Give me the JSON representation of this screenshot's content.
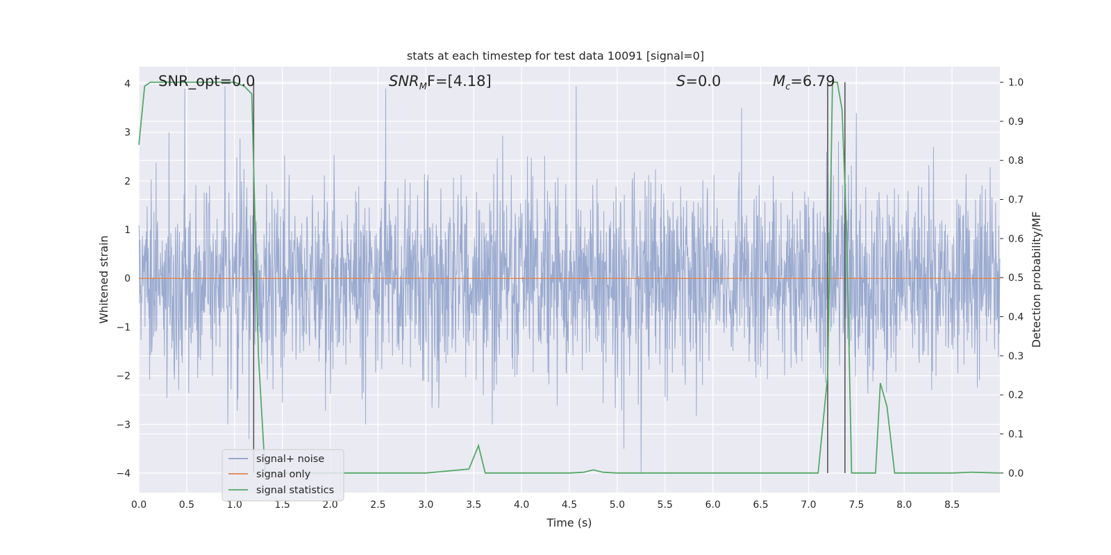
{
  "chart_data": {
    "type": "line",
    "title": "stats at each timestep for test data 10091 [signal=0]",
    "xlabel": "Time (s)",
    "ylabel_left": "Whitened strain",
    "ylabel_right": "Detection probability/MF",
    "xlim": [
      0.0,
      9.0
    ],
    "ylim_left": [
      -4.4,
      4.35
    ],
    "ylim_right": [
      -0.05,
      1.04
    ],
    "x_ticks": [
      "0.0",
      "0.5",
      "1.0",
      "1.5",
      "2.0",
      "2.5",
      "3.0",
      "3.5",
      "4.0",
      "4.5",
      "5.0",
      "5.5",
      "6.0",
      "6.5",
      "7.0",
      "7.5",
      "8.0",
      "8.5"
    ],
    "y_ticks_left": [
      "4",
      "3",
      "2",
      "1",
      "0",
      "−1",
      "−2",
      "−3",
      "−4"
    ],
    "y_ticks_right": [
      "1.0",
      "0.9",
      "0.8",
      "0.7",
      "0.6",
      "0.5",
      "0.4",
      "0.3",
      "0.2",
      "0.1",
      "0.0"
    ],
    "grid": true,
    "legend_position": "lower-left",
    "colors": {
      "background": "#eaeaf2",
      "grid": "#ffffff",
      "signal_noise": "#8c9fc9",
      "signal_only": "#dd8452",
      "signal_statistics": "#55a868",
      "vlines": "#555555"
    },
    "annotations": {
      "snr_opt": "SNR_opt=0.0",
      "snr_mf_main": "SNR",
      "snr_mf_sub": "M",
      "snr_mf_rest": "F=[4.18]",
      "s_main": "S",
      "s_rest": "=0.0",
      "mc_main": "M",
      "mc_sub": "c",
      "mc_rest": "=6.79"
    },
    "series": [
      {
        "name": "signal+ noise",
        "axis": "left",
        "style": "noise",
        "x_range": [
          0.0,
          9.0
        ],
        "std": 1.0,
        "peaks": [
          [
            0.48,
            3.9
          ],
          [
            0.9,
            3.95
          ],
          [
            1.2,
            3.5
          ],
          [
            2.58,
            3.9
          ],
          [
            4.57,
            3.95
          ],
          [
            6.3,
            3.5
          ],
          [
            7.5,
            3.4
          ],
          [
            5.25,
            -4.0
          ],
          [
            5.07,
            -3.5
          ],
          [
            3.6,
            -2.4
          ],
          [
            1.15,
            -3.3
          ]
        ]
      },
      {
        "name": "signal only",
        "axis": "left",
        "x": [
          0.0,
          9.0
        ],
        "y": [
          0.0,
          0.0
        ]
      },
      {
        "name": "signal statistics",
        "axis": "right",
        "x": [
          0.0,
          0.06,
          0.12,
          0.5,
          1.0,
          1.1,
          1.18,
          1.25,
          1.32,
          1.5,
          2.0,
          3.0,
          3.45,
          3.55,
          3.62,
          3.7,
          4.0,
          4.5,
          4.65,
          4.75,
          4.85,
          5.0,
          6.0,
          7.0,
          7.1,
          7.2,
          7.25,
          7.3,
          7.35,
          7.4,
          7.45,
          7.5,
          7.6,
          7.7,
          7.75,
          7.82,
          7.9,
          8.0,
          8.5,
          8.7,
          9.0
        ],
        "y": [
          0.84,
          0.99,
          1.0,
          1.0,
          1.0,
          0.99,
          0.97,
          0.3,
          0.0,
          0.0,
          0.0,
          0.0,
          0.01,
          0.07,
          0.0,
          0.0,
          0.0,
          0.0,
          0.002,
          0.008,
          0.002,
          0.0,
          0.0,
          0.0,
          0.0,
          0.25,
          1.0,
          1.0,
          0.93,
          0.6,
          0.0,
          0.0,
          0.0,
          0.0,
          0.23,
          0.17,
          0.0,
          0.0,
          0.0,
          0.002,
          0.0
        ]
      }
    ],
    "vlines": [
      1.2,
      7.2,
      7.38
    ]
  }
}
